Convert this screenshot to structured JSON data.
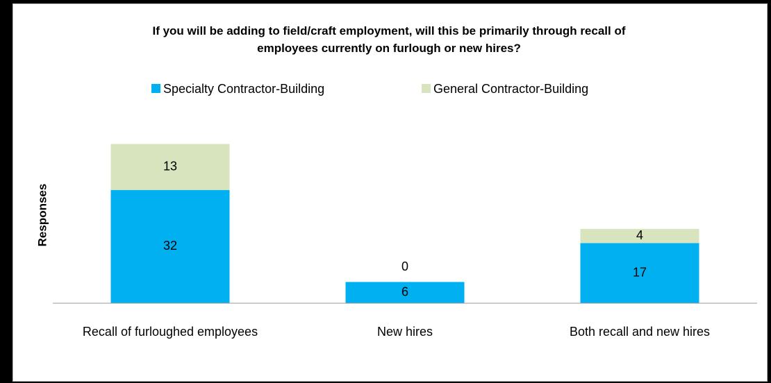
{
  "chart_data": {
    "type": "stacked_bar",
    "title": "If you will be adding to field/craft employment, will this be primarily through recall of employees currently on furlough or new hires?",
    "y_label": "Responses",
    "categories": [
      "Recall of furloughed employees",
      "New hires",
      "Both recall and new hires"
    ],
    "series": [
      {
        "name": "Specialty Contractor-Building",
        "color": "#00b0f0",
        "values": [
          32,
          6,
          17
        ]
      },
      {
        "name": "General Contractor-Building",
        "color": "#d7e4bd",
        "values": [
          13,
          0,
          4
        ]
      }
    ],
    "ylim": [
      0,
      50
    ],
    "legend": "top"
  }
}
